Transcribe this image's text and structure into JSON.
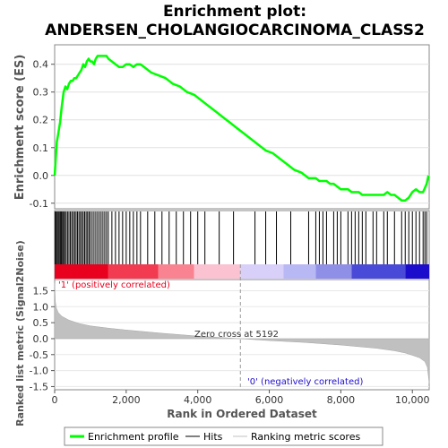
{
  "chart_data": {
    "type": "line",
    "title": "Enrichment plot:",
    "subtitle": "ANDERSEN_CHOLANGIOCARCINOMA_CLASS2",
    "es_panel": {
      "ylabel": "Enrichment score (ES)",
      "ylim": [
        -0.12,
        0.47
      ],
      "yticks": [
        -0.1,
        0.0,
        0.1,
        0.2,
        0.3,
        0.4
      ],
      "ytick_labels": [
        "-0.1",
        "0.0",
        "0.1",
        "0.2",
        "0.3",
        "0.4"
      ],
      "line_color": "#00ff00",
      "series": [
        {
          "name": "Enrichment profile",
          "x": [
            0,
            30,
            60,
            100,
            150,
            200,
            250,
            300,
            350,
            400,
            450,
            500,
            550,
            600,
            650,
            700,
            750,
            800,
            850,
            900,
            950,
            1000,
            1050,
            1100,
            1150,
            1200,
            1250,
            1300,
            1350,
            1400,
            1450,
            1500,
            1600,
            1700,
            1800,
            1900,
            2000,
            2100,
            2200,
            2300,
            2400,
            2500,
            2700,
            2900,
            3100,
            3300,
            3500,
            3700,
            3900,
            4100,
            4300,
            4500,
            4700,
            4900,
            5100,
            5300,
            5500,
            5700,
            5900,
            6100,
            6300,
            6500,
            6700,
            6900,
            7100,
            7200,
            7300,
            7400,
            7500,
            7600,
            7700,
            7800,
            7900,
            8000,
            8100,
            8200,
            8300,
            8400,
            8500,
            8600,
            8700,
            8800,
            8900,
            9000,
            9100,
            9200,
            9300,
            9400,
            9500,
            9600,
            9700,
            9800,
            9900,
            10000,
            10100,
            10200,
            10300,
            10400,
            10450
          ],
          "y": [
            0.0,
            0.06,
            0.12,
            0.15,
            0.19,
            0.25,
            0.3,
            0.32,
            0.31,
            0.33,
            0.34,
            0.34,
            0.35,
            0.35,
            0.36,
            0.37,
            0.38,
            0.4,
            0.39,
            0.41,
            0.42,
            0.41,
            0.41,
            0.4,
            0.42,
            0.43,
            0.43,
            0.43,
            0.43,
            0.43,
            0.43,
            0.42,
            0.41,
            0.4,
            0.39,
            0.39,
            0.4,
            0.4,
            0.39,
            0.4,
            0.4,
            0.39,
            0.37,
            0.36,
            0.35,
            0.33,
            0.32,
            0.3,
            0.29,
            0.27,
            0.25,
            0.23,
            0.21,
            0.19,
            0.17,
            0.15,
            0.13,
            0.11,
            0.09,
            0.08,
            0.06,
            0.04,
            0.02,
            0.01,
            -0.01,
            -0.01,
            -0.01,
            -0.02,
            -0.02,
            -0.02,
            -0.03,
            -0.03,
            -0.04,
            -0.05,
            -0.05,
            -0.05,
            -0.06,
            -0.06,
            -0.06,
            -0.07,
            -0.07,
            -0.07,
            -0.07,
            -0.07,
            -0.07,
            -0.07,
            -0.06,
            -0.07,
            -0.07,
            -0.08,
            -0.09,
            -0.09,
            -0.08,
            -0.06,
            -0.05,
            -0.06,
            -0.06,
            -0.03,
            0.0
          ]
        }
      ]
    },
    "hits_panel": {
      "hit_positions": [
        10,
        40,
        70,
        100,
        130,
        160,
        190,
        220,
        250,
        280,
        320,
        360,
        400,
        440,
        480,
        520,
        560,
        600,
        640,
        680,
        720,
        760,
        800,
        840,
        880,
        920,
        960,
        1000,
        1050,
        1100,
        1150,
        1200,
        1250,
        1300,
        1350,
        1400,
        1450,
        1500,
        1600,
        1700,
        1800,
        1900,
        2000,
        2100,
        2200,
        2300,
        2400,
        2600,
        2800,
        3000,
        3200,
        3400,
        3600,
        3800,
        4000,
        4200,
        4600,
        5000,
        5600,
        5900,
        6200,
        6600,
        7100,
        7300,
        7400,
        7500,
        7600,
        7800,
        7900,
        8000,
        8200,
        8300,
        8400,
        8500,
        8600,
        8700,
        8900,
        9000,
        9200,
        9300,
        9500,
        9700,
        9800,
        9900,
        10000,
        10100,
        10200,
        10300,
        10350,
        10400
      ],
      "bar_colors": [
        "#e8001e",
        "#f23a50",
        "#f98390",
        "#fbc2d2",
        "#d8d0f8",
        "#b8b8f4",
        "#8f8fe8",
        "#4a4ad8",
        "#1c0ccc"
      ],
      "bar_breaks": [
        0,
        1500,
        2900,
        3900,
        5192,
        6400,
        7300,
        8300,
        9800,
        10470
      ]
    },
    "rank_panel": {
      "ylabel": "Ranked list metric (Signal2Noise)",
      "xlabel": "Rank in Ordered Dataset",
      "ylim": [
        -1.6,
        1.85
      ],
      "yticks": [
        -1.5,
        -1.0,
        -0.5,
        0.0,
        0.5,
        1.0,
        1.5
      ],
      "ytick_labels": [
        "-1.5",
        "-1.0",
        "-0.5",
        "0.0",
        "0.5",
        "1.0",
        "1.5"
      ],
      "xlim": [
        0,
        10470
      ],
      "xticks": [
        0,
        2000,
        4000,
        6000,
        8000,
        10000
      ],
      "xtick_labels": [
        "0",
        "2,000",
        "4,000",
        "6,000",
        "8,000",
        "10,000"
      ],
      "fill_color": "#c0c0c0",
      "metric": {
        "x": [
          0,
          20,
          50,
          100,
          200,
          400,
          700,
          1000,
          1500,
          2000,
          3000,
          4000,
          5192,
          6000,
          7000,
          8000,
          9000,
          9500,
          9800,
          10000,
          10200,
          10350,
          10420,
          10470
        ],
        "y": [
          1.75,
          1.15,
          0.95,
          0.82,
          0.7,
          0.58,
          0.47,
          0.4,
          0.33,
          0.27,
          0.17,
          0.08,
          0.0,
          -0.06,
          -0.12,
          -0.2,
          -0.3,
          -0.38,
          -0.45,
          -0.52,
          -0.6,
          -0.72,
          -0.9,
          -1.4
        ]
      },
      "zero_cross_label": "Zero cross at 5192",
      "zero_cross": 5192,
      "positive_label": "'1' (positively correlated)",
      "positive_color": "#e8001e",
      "negative_label": "'0' (negatively correlated)",
      "negative_color": "#1c0ccc"
    },
    "legend": {
      "placement": "bottom",
      "items": [
        {
          "label": "Enrichment profile",
          "color": "#00ff00"
        },
        {
          "label": "Hits",
          "color": "#000000"
        },
        {
          "label": "Ranking metric scores",
          "color": "#c0c0c0"
        }
      ]
    }
  }
}
